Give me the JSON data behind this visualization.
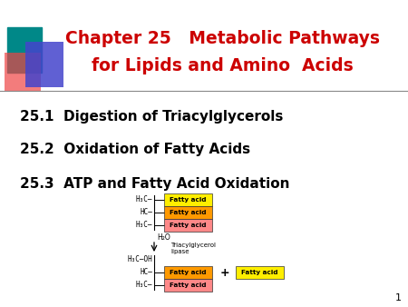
{
  "title_line1": "Chapter 25   Metabolic Pathways",
  "title_line2": "for Lipids and Amino  Acids",
  "title_color": "#cc0000",
  "title_fontsize": 13.5,
  "items": [
    "25.1  Digestion of Triacylglycerols",
    "25.2  Oxidation of Fatty Acids",
    "25.3  ATP and Fatty Acid Oxidation"
  ],
  "items_fontsize": 11,
  "items_color": "#000000",
  "bg_color": "#ffffff",
  "page_number": "1",
  "fatty_acid_yellow": "#ffee00",
  "fatty_acid_orange": "#ff9900",
  "fatty_acid_salmon": "#ff8888",
  "fatty_acid_yellow2": "#ffee00",
  "chem_color": "#000000"
}
